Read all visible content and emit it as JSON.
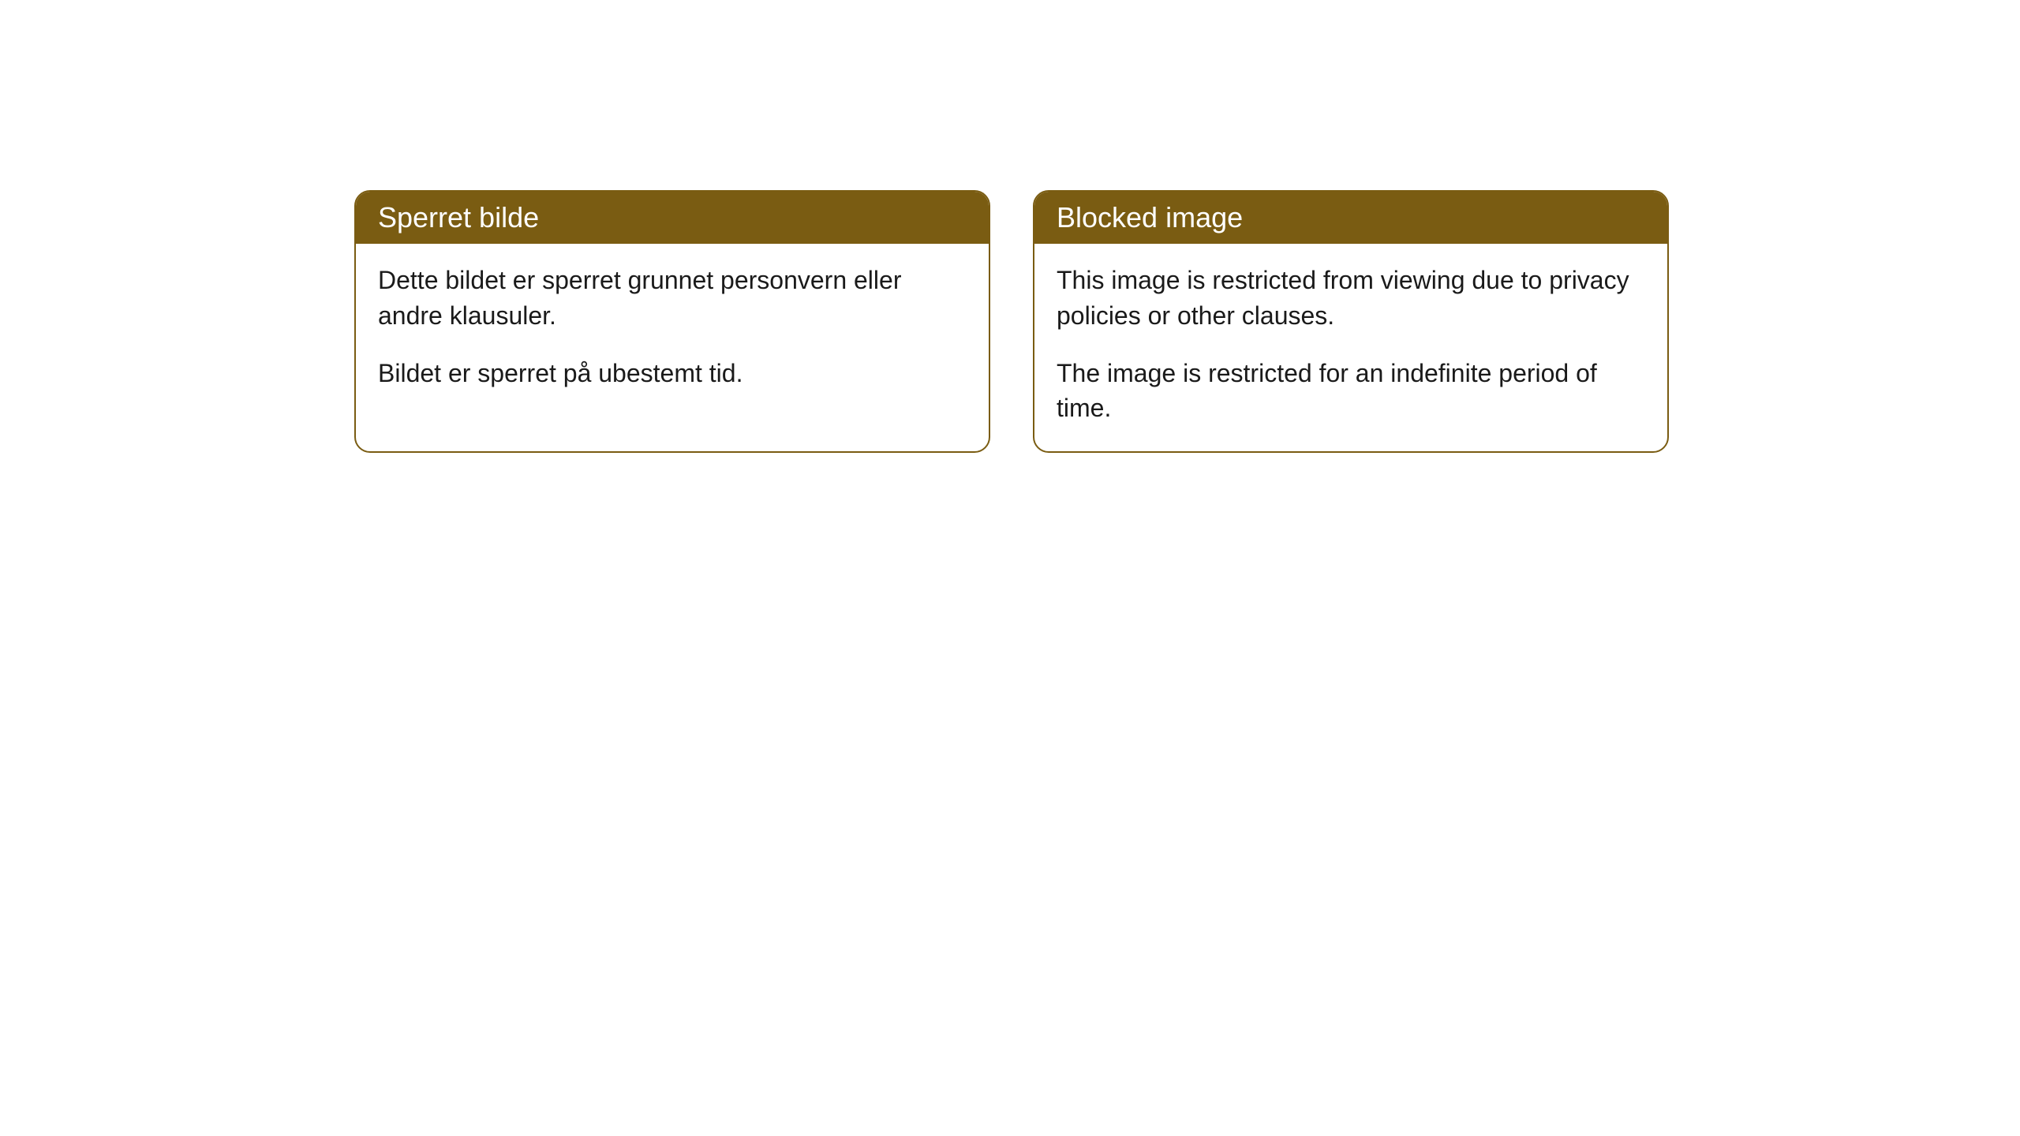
{
  "cards": [
    {
      "title": "Sperret bilde",
      "paragraph1": "Dette bildet er sperret grunnet personvern eller andre klausuler.",
      "paragraph2": "Bildet er sperret på ubestemt tid."
    },
    {
      "title": "Blocked image",
      "paragraph1": "This image is restricted from viewing due to privacy policies or other clauses.",
      "paragraph2": "The image is restricted for an indefinite period of time."
    }
  ],
  "style": {
    "header_bg": "#7a5c12",
    "header_text_color": "#ffffff",
    "border_color": "#7a5c12",
    "body_text_color": "#1a1a1a",
    "background_color": "#ffffff",
    "border_radius": 20,
    "header_fontsize": 36,
    "body_fontsize": 32
  }
}
